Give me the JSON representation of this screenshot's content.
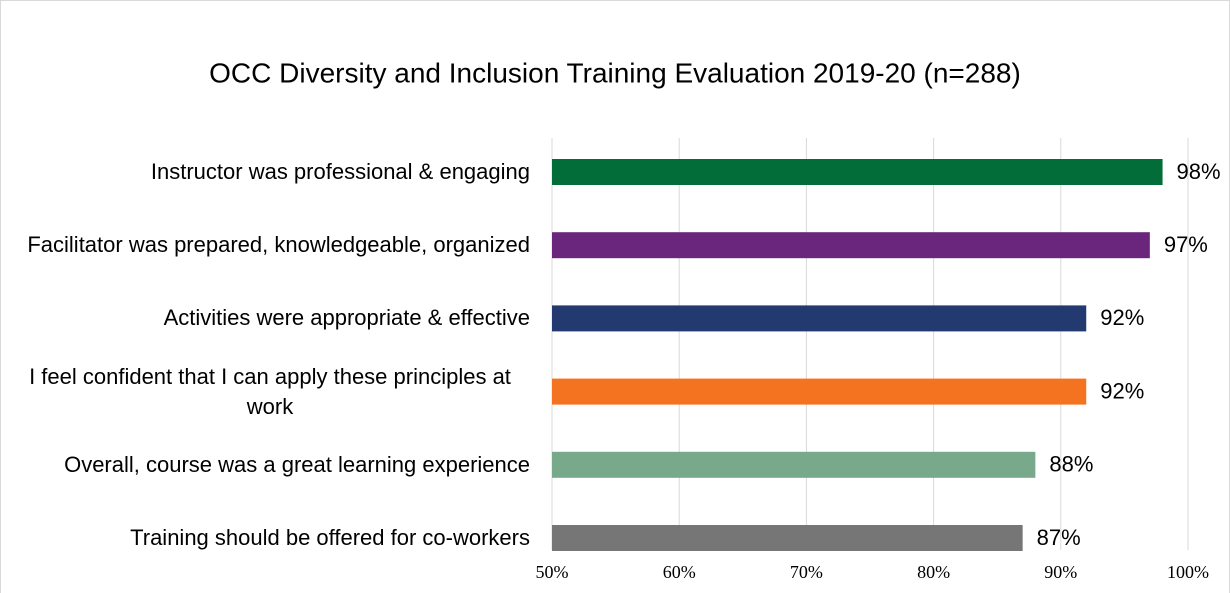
{
  "chart_data": {
    "type": "bar",
    "orientation": "horizontal",
    "title": "OCC Diversity and Inclusion Training Evaluation 2019-20 (n=288)",
    "categories": [
      "Instructor was professional & engaging",
      "Facilitator was prepared, knowledgeable, organized",
      "Activities were appropriate & effective",
      "I feel confident that I can apply these principles at work",
      "Overall, course was a great learning experience",
      "Training should be offered for co-workers"
    ],
    "values": [
      98,
      97,
      92,
      92,
      88,
      87
    ],
    "value_labels": [
      "98%",
      "97%",
      "92%",
      "92%",
      "88%",
      "87%"
    ],
    "colors": [
      "#036d3a",
      "#6a267d",
      "#233a70",
      "#f37321",
      "#78a98a",
      "#767676"
    ],
    "xlim": [
      50,
      100
    ],
    "xticks": [
      {
        "value": 50,
        "label": "50%"
      },
      {
        "value": 60,
        "label": "60%"
      },
      {
        "value": 70,
        "label": "70%"
      },
      {
        "value": 80,
        "label": "80%"
      },
      {
        "value": 90,
        "label": "90%"
      },
      {
        "value": 100,
        "label": "100%"
      }
    ],
    "grid": true
  }
}
